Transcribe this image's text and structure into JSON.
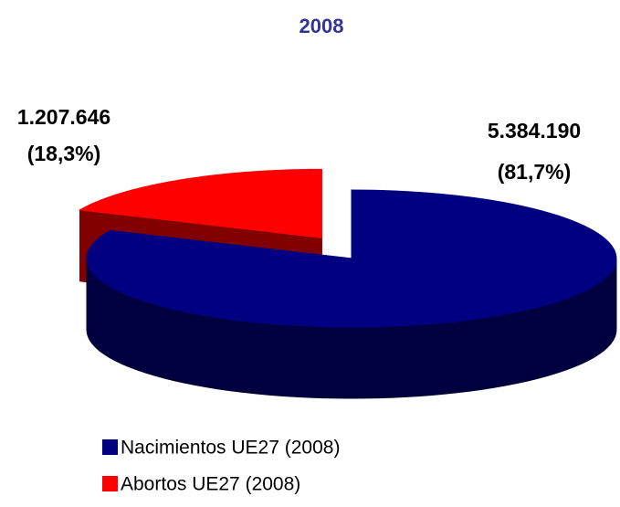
{
  "chart_data": {
    "type": "pie",
    "title": "2008",
    "categories": [
      "Nacimientos UE27 (2008)",
      "Abortos UE27 (2008)"
    ],
    "values": [
      5384190,
      1207646
    ],
    "value_labels": [
      "5.384.190",
      "1.207.646"
    ],
    "percentages": [
      81.7,
      18.3
    ],
    "percentage_labels": [
      "(81,7%)",
      "(18,3%)"
    ],
    "colors": [
      "#000080",
      "#ff0000"
    ],
    "exploded": [
      false,
      true
    ],
    "legend": "bottom"
  }
}
